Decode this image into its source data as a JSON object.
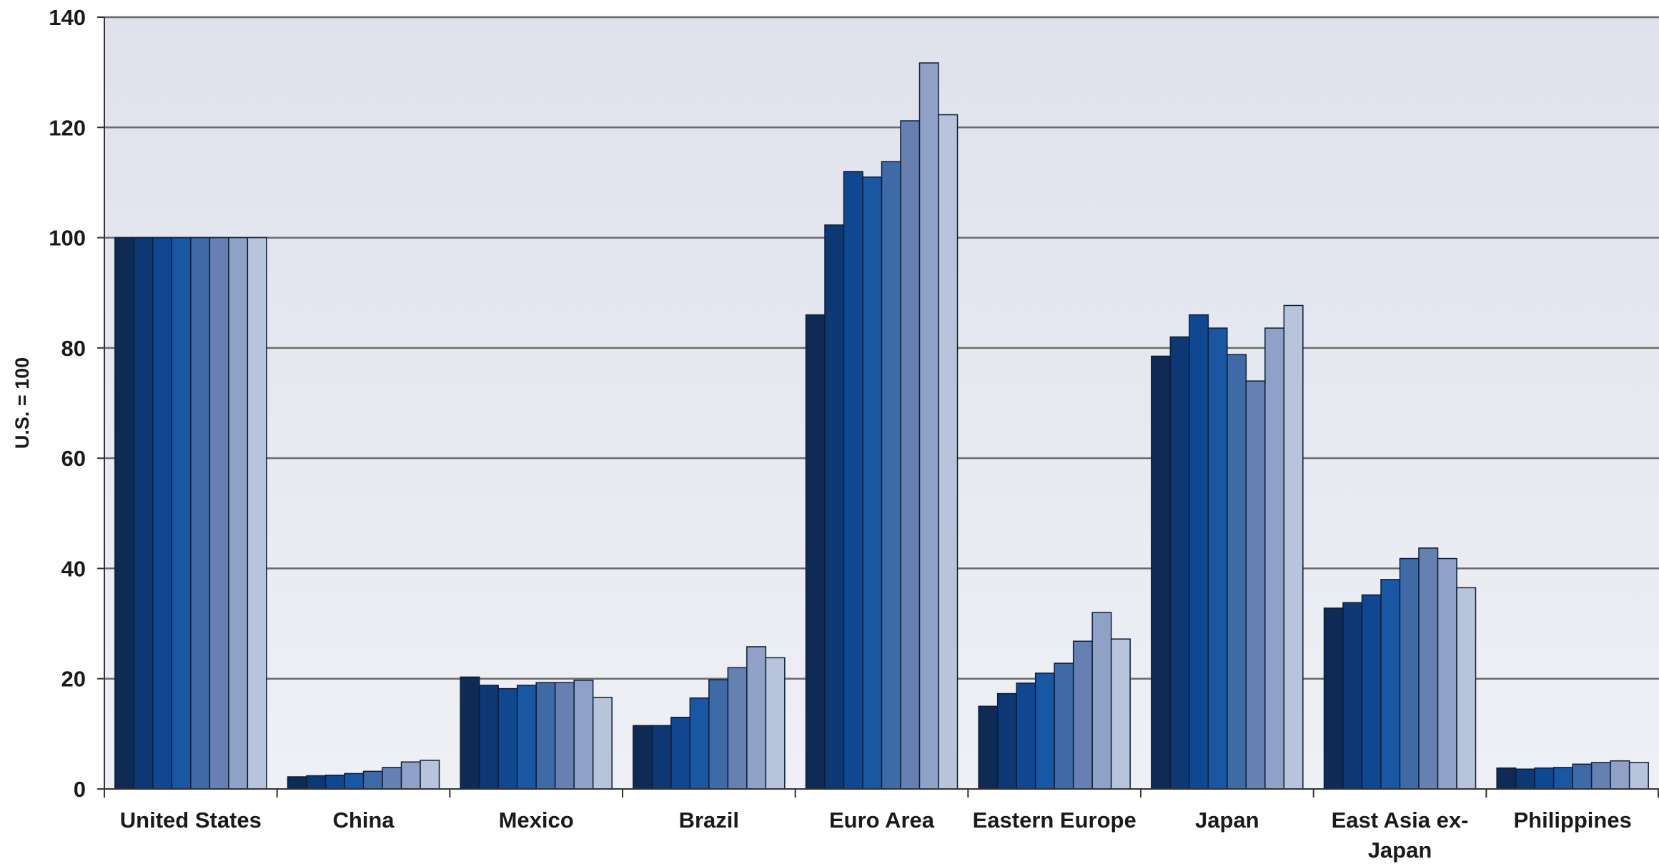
{
  "chart_data": {
    "type": "bar",
    "ylabel": "U.S. = 100",
    "ylim": [
      0,
      140
    ],
    "yticks": [
      "0",
      "20",
      "40",
      "60",
      "80",
      "100",
      "120",
      "140"
    ],
    "grid": true,
    "categories": [
      [
        "United States"
      ],
      [
        "China"
      ],
      [
        "Mexico"
      ],
      [
        "Brazil"
      ],
      [
        "Euro Area"
      ],
      [
        "Eastern Europe"
      ],
      [
        "Japan"
      ],
      [
        "East Asia ex-",
        "Japan"
      ],
      [
        "Philippines"
      ]
    ],
    "series_colors": [
      "#0e2a55",
      "#0d3873",
      "#0f4790",
      "#1a57a3",
      "#3e6aa6",
      "#6680b2",
      "#8fa1c6",
      "#b7c4dc"
    ],
    "values": [
      [
        100,
        100,
        100,
        100,
        100,
        100,
        100,
        100
      ],
      [
        2.2,
        2.4,
        2.5,
        2.8,
        3.2,
        3.9,
        4.9,
        5.2
      ],
      [
        20.3,
        18.8,
        18.2,
        18.8,
        19.3,
        19.3,
        19.7,
        16.6
      ],
      [
        11.5,
        11.5,
        13.0,
        16.5,
        19.8,
        22.0,
        25.8,
        23.8
      ],
      [
        86.0,
        102.3,
        112.0,
        111.0,
        113.8,
        121.2,
        131.7,
        122.3
      ],
      [
        15.0,
        17.3,
        19.2,
        21.0,
        22.8,
        26.8,
        32.0,
        27.2
      ],
      [
        78.5,
        82.0,
        86.0,
        83.6,
        78.8,
        74.0,
        83.6,
        87.7
      ],
      [
        32.8,
        33.8,
        35.2,
        38.0,
        41.8,
        43.7,
        41.8,
        36.5
      ],
      [
        3.8,
        3.6,
        3.8,
        3.9,
        4.5,
        4.8,
        5.1,
        4.8
      ]
    ]
  }
}
